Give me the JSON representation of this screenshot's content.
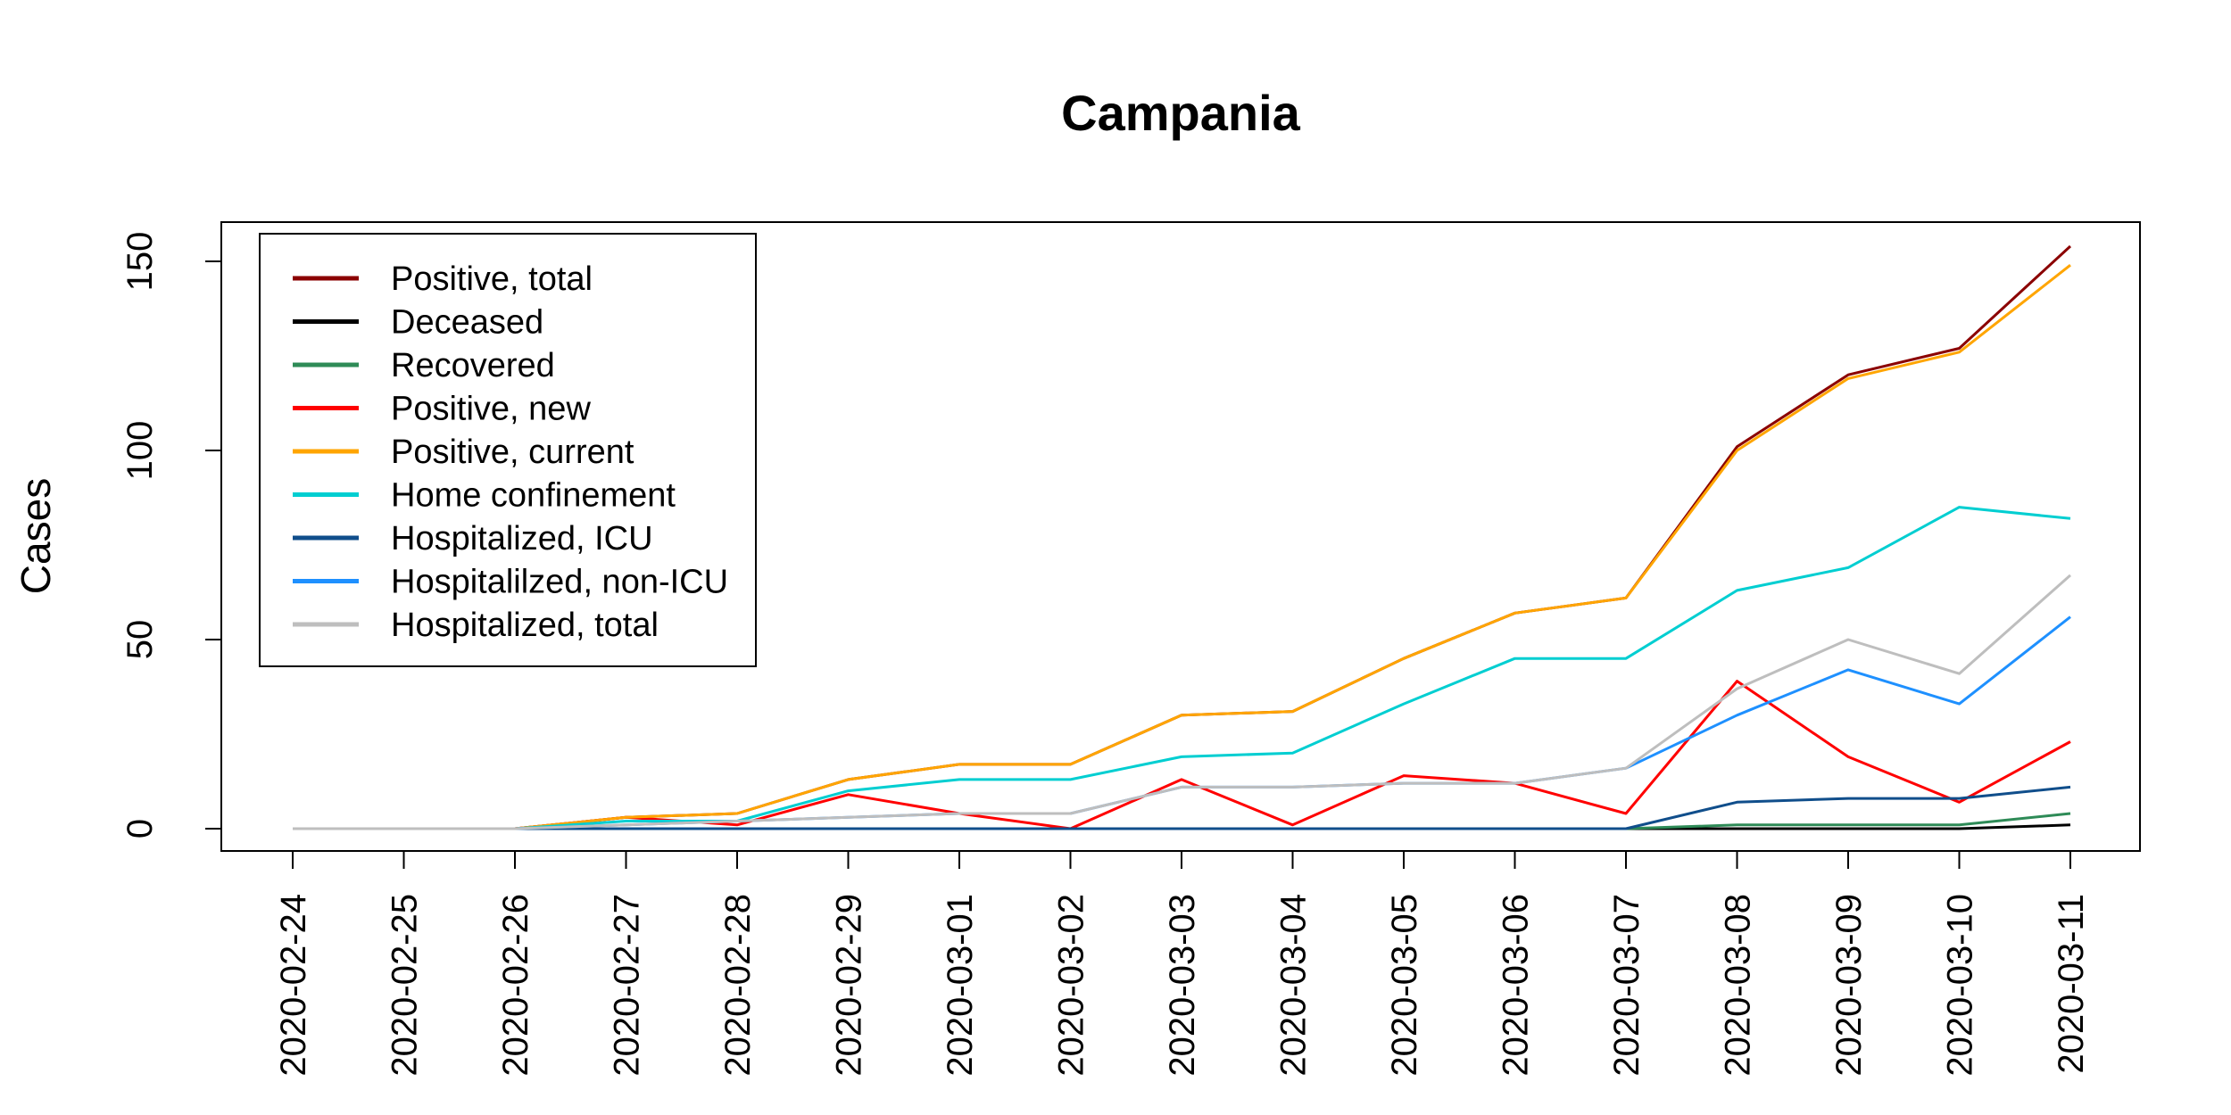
{
  "chart_data": {
    "type": "line",
    "title": "Campania",
    "xlabel": "",
    "ylabel": "Cases",
    "ylim": [
      0,
      160
    ],
    "yticks": [
      0,
      50,
      100,
      150
    ],
    "grid": false,
    "legend_position": "top-left",
    "x": [
      "2020-02-24",
      "2020-02-25",
      "2020-02-26",
      "2020-02-27",
      "2020-02-28",
      "2020-02-29",
      "2020-03-01",
      "2020-03-02",
      "2020-03-03",
      "2020-03-04",
      "2020-03-05",
      "2020-03-06",
      "2020-03-07",
      "2020-03-08",
      "2020-03-09",
      "2020-03-10",
      "2020-03-11"
    ],
    "series": [
      {
        "name": "Positive, total",
        "color": "#8b0000",
        "values": [
          0,
          0,
          0,
          3,
          4,
          13,
          17,
          17,
          30,
          31,
          45,
          57,
          61,
          101,
          120,
          127,
          154
        ]
      },
      {
        "name": "Deceased",
        "color": "#000000",
        "values": [
          0,
          0,
          0,
          0,
          0,
          0,
          0,
          0,
          0,
          0,
          0,
          0,
          0,
          0,
          0,
          0,
          1
        ]
      },
      {
        "name": "Recovered",
        "color": "#2e8b57",
        "values": [
          0,
          0,
          0,
          0,
          0,
          0,
          0,
          0,
          0,
          0,
          0,
          0,
          0,
          1,
          1,
          1,
          4
        ]
      },
      {
        "name": "Positive, new",
        "color": "#ff0000",
        "values": [
          0,
          0,
          0,
          3,
          1,
          9,
          4,
          0,
          13,
          1,
          14,
          12,
          4,
          39,
          19,
          7,
          23
        ]
      },
      {
        "name": "Positive, current",
        "color": "#ffa500",
        "values": [
          0,
          0,
          0,
          3,
          4,
          13,
          17,
          17,
          30,
          31,
          45,
          57,
          61,
          100,
          119,
          126,
          149
        ]
      },
      {
        "name": "Home confinement",
        "color": "#00ced1",
        "values": [
          0,
          0,
          0,
          2,
          2,
          10,
          13,
          13,
          19,
          20,
          33,
          45,
          45,
          63,
          69,
          85,
          82
        ]
      },
      {
        "name": "Hospitalized, ICU",
        "color": "#104e8b",
        "values": [
          0,
          0,
          0,
          0,
          0,
          0,
          0,
          0,
          0,
          0,
          0,
          0,
          0,
          7,
          8,
          8,
          11
        ]
      },
      {
        "name": "Hospitalilzed, non-ICU",
        "color": "#1e90ff",
        "values": [
          0,
          0,
          0,
          1,
          2,
          3,
          4,
          4,
          11,
          11,
          12,
          12,
          16,
          30,
          42,
          33,
          56
        ]
      },
      {
        "name": "Hospitalized, total",
        "color": "#bebebe",
        "values": [
          0,
          0,
          0,
          1,
          2,
          3,
          4,
          4,
          11,
          11,
          12,
          12,
          16,
          37,
          50,
          41,
          67
        ]
      }
    ]
  }
}
